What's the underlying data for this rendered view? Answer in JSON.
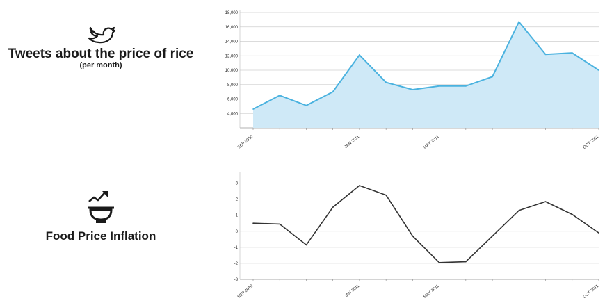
{
  "labels": {
    "tweets_title": "Tweets about the price of rice",
    "tweets_subtitle": "(per month)",
    "food_title": "Food Price Inflation"
  },
  "icons": {
    "tweets": "twitter-bird-icon",
    "food": "rising-bowl-icon"
  },
  "colors": {
    "tweets_line": "#4ab2df",
    "tweets_fill": "#cfe9f7",
    "food_line": "#333333",
    "grid": "#cfcfcf"
  },
  "chart_data": [
    {
      "type": "area",
      "x_ticks": [
        "SEP 2010",
        "JAN 2011",
        "MAY 2011",
        "OCT 2011"
      ],
      "x_tick_positions": [
        0,
        4,
        7,
        13
      ],
      "y_ticks": [
        "4,000",
        "6,000",
        "8,000",
        "10,000",
        "12,000",
        "14,000",
        "16,000",
        "18,000"
      ],
      "ylim": [
        2000,
        18000
      ],
      "values": [
        4600,
        6500,
        5100,
        7000,
        12100,
        8300,
        7300,
        7800,
        7800,
        9100,
        16700,
        12200,
        12400,
        10000
      ],
      "grid": true
    },
    {
      "type": "line",
      "x_ticks": [
        "SEP 2010",
        "JAN 2011",
        "MAY 2011",
        "OCT 2011"
      ],
      "x_tick_positions": [
        0,
        4,
        7,
        13
      ],
      "y_ticks": [
        "-3",
        "-2",
        "-1",
        "0",
        "1",
        "2",
        "3"
      ],
      "ylim": [
        -3,
        3.5
      ],
      "values": [
        0.5,
        0.45,
        -0.85,
        1.5,
        2.85,
        2.25,
        -0.3,
        -1.95,
        -1.9,
        -0.3,
        1.3,
        1.85,
        1.05,
        -0.1
      ],
      "grid": true
    }
  ]
}
